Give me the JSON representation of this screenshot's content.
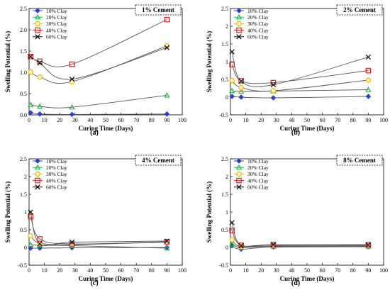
{
  "series_styles": [
    {
      "name": "10% Clay",
      "color": "#2a3dd6",
      "marker": "diamond"
    },
    {
      "name": "20% Clay",
      "color": "#19b34a",
      "marker": "triangle"
    },
    {
      "name": "30% Clay",
      "color": "#f0b400",
      "marker": "circle"
    },
    {
      "name": "40% Clay",
      "color": "#e02020",
      "marker": "square"
    },
    {
      "name": "60% Clay",
      "color": "#111111",
      "marker": "x"
    }
  ],
  "chart_data": [
    {
      "type": "line",
      "panel_label": "(a)",
      "tag": "1% Cement",
      "xlabel": "Curing Time (Days)",
      "ylabel": "Swelling Potential (%)",
      "xlim": [
        0,
        100
      ],
      "ylim": [
        0,
        2.5
      ],
      "xticks": [
        "0",
        "10",
        "20",
        "30",
        "40",
        "50",
        "60",
        "70",
        "80",
        "90",
        "100"
      ],
      "yticks": [
        "0.0",
        "0.5",
        "1.0",
        "1.5",
        "2.0",
        "2.5"
      ],
      "x": [
        1,
        7,
        28,
        90
      ],
      "series": [
        {
          "name": "10% Clay",
          "values": [
            0.05,
            0.02,
            0.01,
            0.02
          ]
        },
        {
          "name": "20% Clay",
          "values": [
            0.24,
            0.2,
            0.18,
            0.46
          ]
        },
        {
          "name": "30% Clay",
          "values": [
            1.01,
            0.89,
            0.78,
            1.62
          ]
        },
        {
          "name": "40% Clay",
          "values": [
            1.37,
            1.26,
            1.19,
            2.24
          ]
        },
        {
          "name": "60% Clay",
          "values": [
            1.37,
            1.22,
            0.84,
            1.58
          ]
        }
      ]
    },
    {
      "type": "line",
      "panel_label": "(b)",
      "tag": "2% Cement",
      "xlabel": "Curing Time (Days)",
      "ylabel": "Swelling Potential (%)",
      "xlim": [
        0,
        100
      ],
      "ylim": [
        -0.5,
        2.5
      ],
      "xticks": [
        "0",
        "10",
        "20",
        "30",
        "40",
        "50",
        "60",
        "70",
        "80",
        "90",
        "100"
      ],
      "yticks": [
        "-0.5",
        "0",
        "0.5",
        "1",
        "1.5",
        "2",
        "2.5"
      ],
      "x": [
        1,
        7,
        28,
        90
      ],
      "series": [
        {
          "name": "10% Clay",
          "values": [
            0.02,
            0.0,
            -0.02,
            0.02
          ]
        },
        {
          "name": "20% Clay",
          "values": [
            0.18,
            0.16,
            0.17,
            0.21
          ]
        },
        {
          "name": "30% Clay",
          "values": [
            0.47,
            0.27,
            0.18,
            0.48
          ]
        },
        {
          "name": "40% Clay",
          "values": [
            0.92,
            0.46,
            0.41,
            0.75
          ]
        },
        {
          "name": "60% Clay",
          "values": [
            1.28,
            0.45,
            0.35,
            1.13
          ]
        }
      ]
    },
    {
      "type": "line",
      "panel_label": "(c)",
      "tag": "4% Cement",
      "xlabel": "Curing Time (Days)",
      "ylabel": "Swelling Potential (%)",
      "xlim": [
        0,
        100
      ],
      "ylim": [
        -0.5,
        2.5
      ],
      "xticks": [
        "0",
        "10",
        "20",
        "30",
        "40",
        "50",
        "60",
        "70",
        "80",
        "90",
        "100"
      ],
      "yticks": [
        "-0.5",
        "0",
        "0.5",
        "1",
        "1.5",
        "2",
        "2.5"
      ],
      "x": [
        1,
        7,
        28,
        90
      ],
      "series": [
        {
          "name": "10% Clay",
          "values": [
            -0.02,
            -0.02,
            -0.01,
            0.0
          ]
        },
        {
          "name": "20% Clay",
          "values": [
            0.08,
            0.06,
            0.05,
            -0.02
          ]
        },
        {
          "name": "30% Clay",
          "values": [
            0.33,
            0.12,
            0.08,
            0.15
          ]
        },
        {
          "name": "40% Clay",
          "values": [
            0.87,
            0.24,
            0.1,
            0.16
          ]
        },
        {
          "name": "60% Clay",
          "values": [
            1.0,
            0.1,
            0.15,
            0.18
          ]
        }
      ]
    },
    {
      "type": "line",
      "panel_label": "(d)",
      "tag": "8% Cement",
      "xlabel": "Curing Time (Days)",
      "ylabel": "Swelling Potential (%)",
      "xlim": [
        0,
        100
      ],
      "ylim": [
        -0.5,
        2.5
      ],
      "xticks": [
        "0",
        "10",
        "20",
        "30",
        "40",
        "50",
        "60",
        "70",
        "80",
        "90",
        "100"
      ],
      "yticks": [
        "-0.5",
        "0",
        "0.5",
        "1",
        "1.5",
        "2",
        "2.5"
      ],
      "x": [
        1,
        7,
        28,
        90
      ],
      "series": [
        {
          "name": "10% Clay",
          "values": [
            0.05,
            -0.05,
            0.01,
            0.02
          ]
        },
        {
          "name": "20% Clay",
          "values": [
            0.1,
            0.0,
            0.03,
            0.03
          ]
        },
        {
          "name": "30% Clay",
          "values": [
            0.22,
            0.02,
            0.05,
            0.05
          ]
        },
        {
          "name": "40% Clay",
          "values": [
            0.48,
            0.06,
            0.08,
            0.08
          ]
        },
        {
          "name": "60% Clay",
          "values": [
            0.7,
            0.05,
            0.08,
            0.07
          ]
        }
      ]
    }
  ]
}
